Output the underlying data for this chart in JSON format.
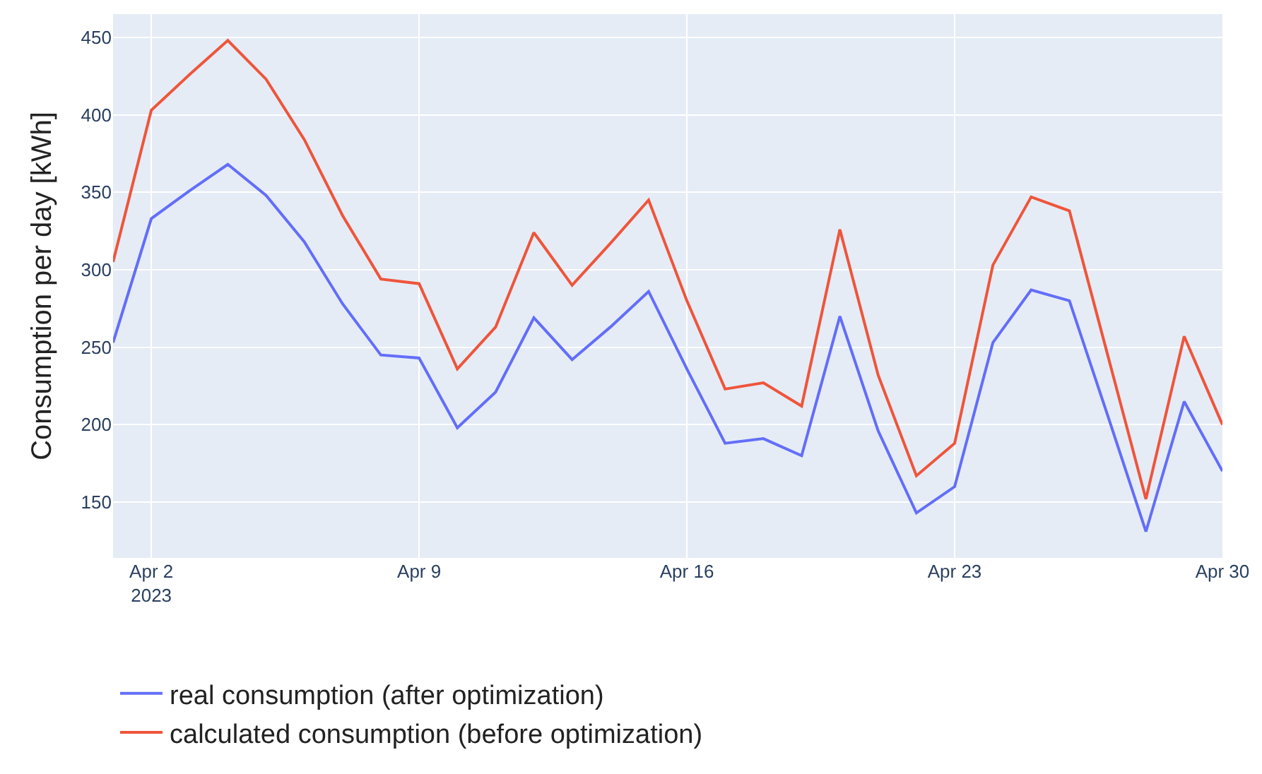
{
  "chart_data": {
    "type": "line",
    "ylabel": "Consumption per day [kWh]",
    "x": [
      "2023-04-01",
      "2023-04-02",
      "2023-04-03",
      "2023-04-04",
      "2023-04-05",
      "2023-04-06",
      "2023-04-07",
      "2023-04-08",
      "2023-04-09",
      "2023-04-10",
      "2023-04-11",
      "2023-04-12",
      "2023-04-13",
      "2023-04-14",
      "2023-04-15",
      "2023-04-16",
      "2023-04-17",
      "2023-04-18",
      "2023-04-19",
      "2023-04-20",
      "2023-04-21",
      "2023-04-22",
      "2023-04-23",
      "2023-04-24",
      "2023-04-25",
      "2023-04-26",
      "2023-04-27",
      "2023-04-28",
      "2023-04-29",
      "2023-04-30"
    ],
    "series": [
      {
        "name": "real consumption (after optimization)",
        "color": "#636efa",
        "values": [
          253,
          333,
          351,
          368,
          348,
          318,
          278,
          245,
          243,
          198,
          221,
          269,
          242,
          263,
          286,
          236,
          188,
          191,
          180,
          270,
          196,
          143,
          160,
          253,
          287,
          280,
          206,
          131,
          215,
          170
        ]
      },
      {
        "name": "calculated consumption (before optimization)",
        "color": "#ef553b",
        "values": [
          305,
          403,
          426,
          448,
          423,
          384,
          335,
          294,
          291,
          236,
          263,
          324,
          290,
          317,
          345,
          280,
          223,
          227,
          212,
          326,
          232,
          167,
          188,
          303,
          347,
          338,
          245,
          152,
          257,
          200
        ]
      }
    ],
    "xlim": [
      "2023-04-01",
      "2023-04-30"
    ],
    "xticks": [
      {
        "value": "2023-04-02",
        "label": "Apr 2\n2023"
      },
      {
        "value": "2023-04-09",
        "label": "Apr 9"
      },
      {
        "value": "2023-04-16",
        "label": "Apr 16"
      },
      {
        "value": "2023-04-23",
        "label": "Apr 23"
      },
      {
        "value": "2023-04-30",
        "label": "Apr 30"
      }
    ],
    "ylim": [
      114,
      465
    ],
    "yticks": [
      150,
      200,
      250,
      300,
      350,
      400,
      450
    ],
    "grid": true,
    "legend": "bottom left",
    "marker": "none",
    "line_style": "solid"
  }
}
